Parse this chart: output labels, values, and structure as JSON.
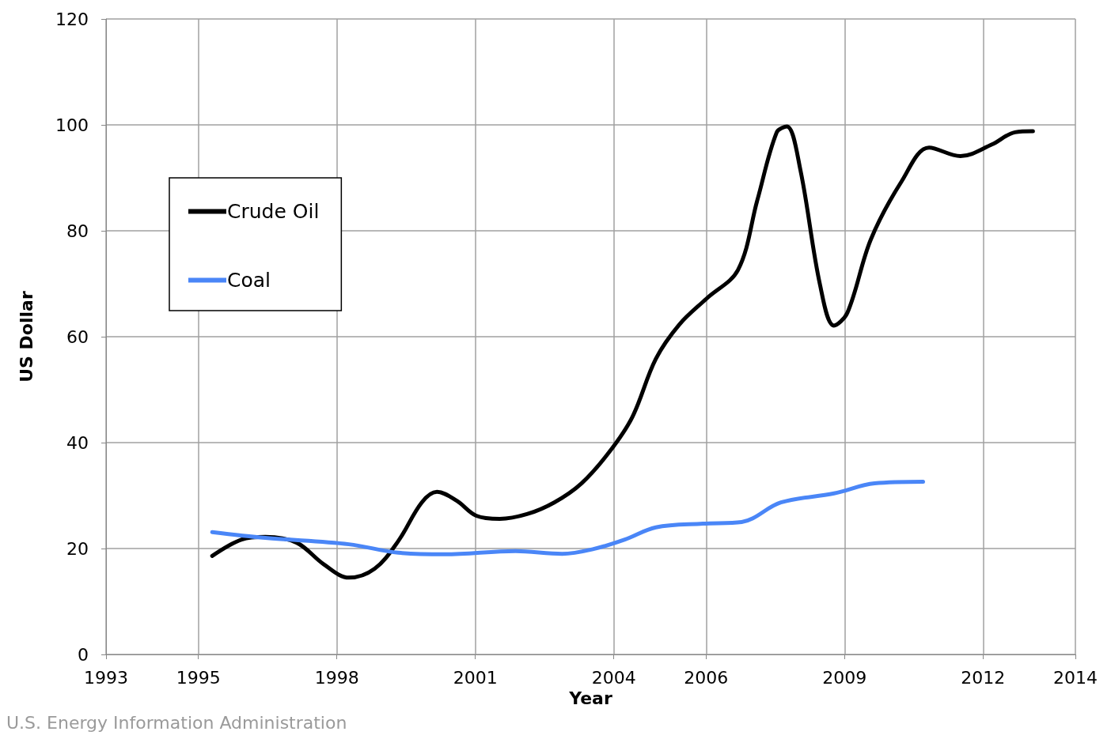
{
  "chart_data": {
    "type": "line",
    "xlabel": "Year",
    "ylabel": "US Dollar",
    "annotations": [
      "U.S. Energy Information Administration"
    ],
    "xlim": [
      1993,
      2014
    ],
    "xticks": [
      1993,
      1995,
      1998,
      2001,
      2004,
      2006,
      2009,
      2012,
      2014
    ],
    "ylim": [
      0,
      120
    ],
    "yticks": [
      0,
      20,
      40,
      60,
      80,
      100,
      120
    ],
    "grid": true,
    "legend": "top left",
    "marker": "none",
    "line_style": "solid",
    "series": [
      {
        "name": "Crude Oil",
        "color": "#000000",
        "x": [
          1995.3,
          1995.94,
          1996.45,
          1997.13,
          1997.72,
          1998.26,
          1998.82,
          1999.33,
          1999.84,
          2000.17,
          2000.6,
          2001.02,
          2001.53,
          2002.12,
          2002.71,
          2003.3,
          2003.9,
          2004.4,
          2004.91,
          2005.42,
          2006.01,
          2006.69,
          2007.11,
          2007.53,
          2007.75,
          2008.04,
          2008.47,
          2008.77,
          2009.06,
          2009.57,
          2010.24,
          2010.83,
          2011.51,
          2012.19,
          2012.69,
          2013.08
        ],
        "values": [
          18.6,
          21.7,
          22.2,
          21.1,
          17.0,
          14.5,
          16.2,
          21.4,
          28.7,
          30.7,
          29.0,
          26.2,
          25.6,
          26.5,
          28.7,
          32.3,
          38.2,
          44.8,
          55.8,
          62.3,
          67.2,
          72.6,
          85.8,
          98.6,
          99.7,
          91.6,
          69.7,
          62.1,
          64.5,
          78.4,
          89.4,
          95.7,
          94.1,
          96.3,
          98.6,
          98.8
        ]
      },
      {
        "name": "Coal",
        "color": "#4a86f7",
        "x": [
          1995.3,
          1996.45,
          1998.26,
          1999.33,
          2000.34,
          2001.87,
          2002.88,
          2003.56,
          2004.24,
          2004.91,
          2005.93,
          2006.77,
          2007.62,
          2008.77,
          2009.65,
          2010.7
        ],
        "values": [
          23.1,
          22.0,
          20.8,
          19.2,
          18.9,
          19.5,
          19.0,
          19.9,
          21.7,
          24.0,
          24.7,
          25.0,
          28.7,
          30.4,
          32.3,
          32.6
        ]
      }
    ]
  }
}
